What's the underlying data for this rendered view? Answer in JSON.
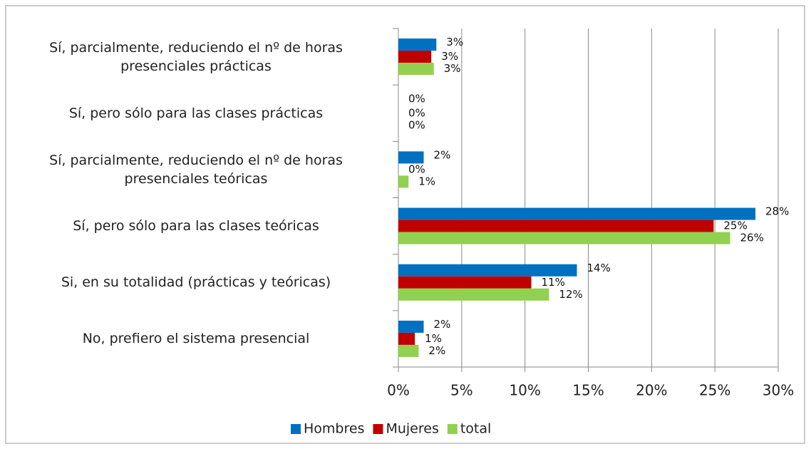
{
  "chart_data": {
    "type": "hbar",
    "categories": [
      "Sí, parcialmente, reduciendo el nº de horas presenciales prácticas",
      "Sí, pero sólo para las clases prácticas",
      "Sí, parcialmente, reduciendo el nº de horas presenciales teóricas",
      "Sí, pero sólo para las clases teóricas",
      "Si, en su totalidad (prácticas y teóricas)",
      "No, prefiero el sistema presencial"
    ],
    "series": [
      {
        "name": "Hombres",
        "color": "#0070c0",
        "values": [
          3.0,
          0,
          2.0,
          28.2,
          14.1,
          2.0
        ],
        "value_labels": [
          "3%",
          "0%",
          "2%",
          "28%",
          "14%",
          "2%"
        ]
      },
      {
        "name": "Mujeres",
        "color": "#c00000",
        "values": [
          2.6,
          0,
          0,
          24.9,
          10.5,
          1.3
        ],
        "value_labels": [
          "3%",
          "0%",
          "0%",
          "25%",
          "11%",
          "1%"
        ]
      },
      {
        "name": "total",
        "color": "#92d050",
        "values": [
          2.8,
          0,
          0.8,
          26.2,
          11.9,
          1.6
        ],
        "value_labels": [
          "3%",
          "0%",
          "1%",
          "26%",
          "12%",
          "2%"
        ]
      }
    ],
    "xlim": [
      0,
      30
    ],
    "xticks": [
      {
        "value": 0,
        "label": "0%"
      },
      {
        "value": 5,
        "label": "5%"
      },
      {
        "value": 10,
        "label": "10%"
      },
      {
        "value": 15,
        "label": "15%"
      },
      {
        "value": 20,
        "label": "20%"
      },
      {
        "value": 25,
        "label": "25%"
      },
      {
        "value": 30,
        "label": "30%"
      }
    ],
    "grid": true,
    "legend": "bottom"
  }
}
